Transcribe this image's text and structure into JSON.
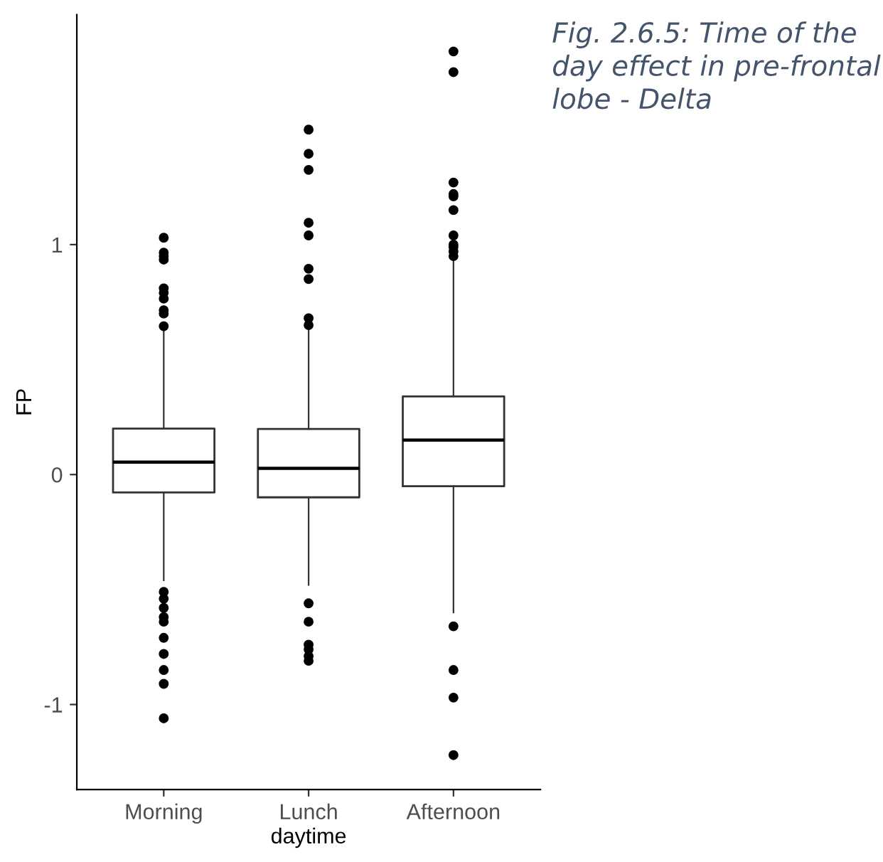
{
  "chart_data": {
    "type": "box",
    "categories": [
      "Morning",
      "Lunch",
      "Afternoon"
    ],
    "xlabel": "daytime",
    "ylabel": "FP",
    "ylim": [
      -1.37,
      2.0
    ],
    "yticks": [
      -1,
      0,
      1
    ],
    "grid": false,
    "legend": false,
    "boxes": [
      {
        "low": -0.46,
        "q1": -0.078,
        "median": 0.054,
        "q3": 0.2,
        "high": 0.64,
        "outliers": [
          1.03,
          0.965,
          0.95,
          0.935,
          0.81,
          0.79,
          0.765,
          0.715,
          0.7,
          0.645,
          -0.51,
          -0.54,
          -0.58,
          -0.62,
          -0.64,
          -0.71,
          -0.78,
          -0.85,
          -0.91,
          -1.06
        ]
      },
      {
        "low": -0.48,
        "q1": -0.099,
        "median": 0.027,
        "q3": 0.198,
        "high": 0.64,
        "outliers": [
          1.5,
          1.395,
          1.325,
          1.095,
          1.04,
          0.895,
          0.85,
          0.68,
          0.65,
          -0.56,
          -0.64,
          -0.74,
          -0.76,
          -0.79,
          -0.81
        ]
      },
      {
        "low": -0.6,
        "q1": -0.051,
        "median": 0.15,
        "q3": 0.34,
        "high": 0.94,
        "outliers": [
          1.84,
          1.75,
          1.27,
          1.22,
          1.21,
          1.15,
          1.04,
          1.0,
          0.99,
          0.97,
          0.95,
          -0.66,
          -0.85,
          -0.97,
          -1.22
        ]
      }
    ],
    "annotations": [
      "Fig. 2.6.5: Time of the day effect in pre-frontal lobe - Delta"
    ]
  }
}
